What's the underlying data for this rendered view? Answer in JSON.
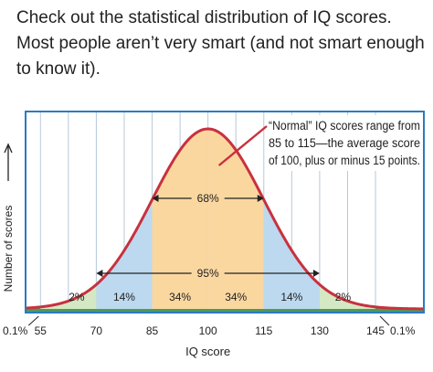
{
  "post": {
    "caption": "Check out the statistical distribution of IQ scores. Most people aren’t very smart (and not smart enough to know it)."
  },
  "chart_data": {
    "type": "area",
    "xlabel": "IQ score",
    "ylabel": "Number of scores",
    "xlim": [
      51,
      158
    ],
    "x_ticks": [
      55,
      70,
      85,
      100,
      115,
      130,
      145
    ],
    "grid": true,
    "distribution": {
      "mean": 100,
      "sd": 15
    },
    "bands": [
      {
        "from": 51,
        "to": 55,
        "percent_label": "0.1%",
        "color": "#4e9a5a"
      },
      {
        "from": 55,
        "to": 70,
        "percent_label": "2%",
        "color": "#d4e8c4"
      },
      {
        "from": 70,
        "to": 85,
        "percent_label": "14%",
        "color": "#bcd9ef"
      },
      {
        "from": 85,
        "to": 100,
        "percent_label": "34%",
        "color": "#fbd7a0"
      },
      {
        "from": 100,
        "to": 115,
        "percent_label": "34%",
        "color": "#fbd7a0"
      },
      {
        "from": 115,
        "to": 130,
        "percent_label": "14%",
        "color": "#bcd9ef"
      },
      {
        "from": 130,
        "to": 145,
        "percent_label": "2%",
        "color": "#d4e8c4"
      },
      {
        "from": 145,
        "to": 158,
        "percent_label": "0.1%",
        "color": "#4e9a5a"
      }
    ],
    "ranges": [
      {
        "from": 85,
        "to": 115,
        "label": "68%"
      },
      {
        "from": 70,
        "to": 130,
        "label": "95%"
      }
    ],
    "annotation": "“Normal” IQ scores range from 85 to 115—the average score of 100, plus or minus 15 points.",
    "annotation_lines": [
      "“Normal” IQ scores range from",
      "85 to 115—the average score",
      "of 100, plus or minus 15 points."
    ],
    "colors": {
      "frame": "#2b7bbf",
      "curve": "#c8313e",
      "grid": "#b7c9da",
      "tails": "#4e9a5a"
    }
  }
}
